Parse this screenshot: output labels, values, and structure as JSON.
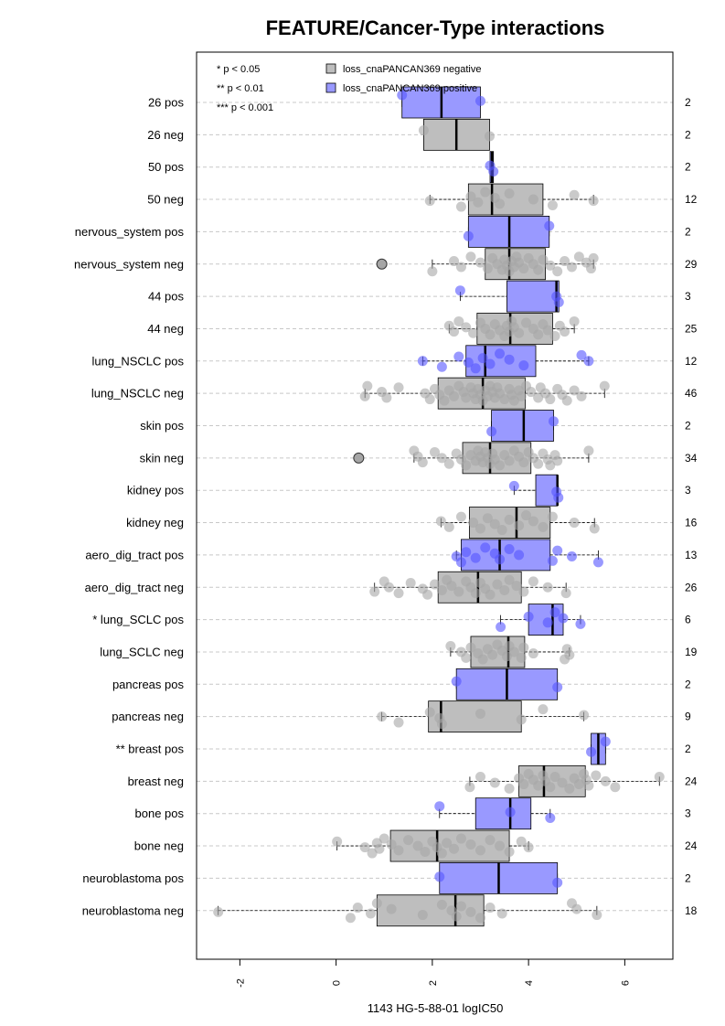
{
  "chart_data": {
    "type": "box",
    "title": "FEATURE/Cancer-Type interactions",
    "xlabel": "1143 HG-5-88-01 logIC50",
    "ylabel": "",
    "xlim": [
      -2.9,
      7.0
    ],
    "xticks": [
      "-2",
      "0",
      "2",
      "4",
      "6"
    ],
    "xtick_values": [
      -2,
      0,
      2,
      4,
      6
    ],
    "grid": "horizontal dashed",
    "significance_legend": [
      "* p < 0.05",
      "** p < 0.01",
      "*** p < 0.001"
    ],
    "legend": [
      {
        "label": "loss_cnaPANCAN369 negative",
        "color": "#bebebe"
      },
      {
        "label": "loss_cnaPANCAN369 positive",
        "color": "#9999ff"
      }
    ],
    "colors": {
      "neg_box": "#bebebe",
      "pos_box": "#9999ff",
      "neg_point": "#a6a6a6",
      "pos_point": "#5555ff"
    },
    "groups": [
      {
        "label": "26 pos",
        "n": "2",
        "pos": true,
        "q1": 1.37,
        "median": 2.19,
        "q3": 3.0,
        "wlo": 1.37,
        "whi": 3.0,
        "outliers": [],
        "points": [
          1.37,
          3.0
        ]
      },
      {
        "label": "26 neg",
        "n": "2",
        "pos": false,
        "q1": 1.82,
        "median": 2.5,
        "q3": 3.19,
        "wlo": 1.82,
        "whi": 3.19,
        "outliers": [],
        "points": [
          1.82,
          3.19
        ]
      },
      {
        "label": "50 pos",
        "n": "2",
        "pos": true,
        "q1": 3.2,
        "median": 3.24,
        "q3": 3.27,
        "wlo": 3.2,
        "whi": 3.27,
        "outliers": [],
        "points": [
          3.2,
          3.27
        ]
      },
      {
        "label": "50 neg",
        "n": "12",
        "pos": false,
        "q1": 2.75,
        "median": 3.24,
        "q3": 4.3,
        "wlo": 1.95,
        "whi": 5.35,
        "outliers": [],
        "points": [
          1.95,
          2.6,
          2.8,
          2.95,
          3.1,
          3.3,
          3.4,
          3.6,
          4.1,
          4.5,
          4.95,
          5.35
        ]
      },
      {
        "label": "nervous_system pos",
        "n": "2",
        "pos": true,
        "q1": 2.75,
        "median": 3.6,
        "q3": 4.43,
        "wlo": 2.75,
        "whi": 4.43,
        "outliers": [],
        "points": [
          2.75,
          4.43
        ]
      },
      {
        "label": "nervous_system neg",
        "n": "29",
        "pos": false,
        "q1": 3.1,
        "median": 3.6,
        "q3": 4.35,
        "wlo": 2.0,
        "whi": 5.35,
        "outliers": [
          0.95
        ],
        "points": [
          2.0,
          2.45,
          2.6,
          2.8,
          3.0,
          3.15,
          3.25,
          3.35,
          3.45,
          3.5,
          3.55,
          3.6,
          3.65,
          3.7,
          3.75,
          3.8,
          3.9,
          4.0,
          4.1,
          4.2,
          4.3,
          4.45,
          4.6,
          4.75,
          4.9,
          5.05,
          5.2,
          5.3,
          5.35
        ]
      },
      {
        "label": "44 pos",
        "n": "3",
        "pos": true,
        "q1": 3.55,
        "median": 4.58,
        "q3": 4.63,
        "wlo": 2.58,
        "whi": 4.63,
        "outliers": [],
        "points": [
          2.58,
          4.58,
          4.63
        ]
      },
      {
        "label": "44 neg",
        "n": "25",
        "pos": false,
        "q1": 2.93,
        "median": 3.62,
        "q3": 4.5,
        "wlo": 2.35,
        "whi": 4.95,
        "outliers": [],
        "points": [
          2.35,
          2.45,
          2.55,
          2.7,
          2.85,
          3.0,
          3.1,
          3.2,
          3.3,
          3.4,
          3.5,
          3.55,
          3.6,
          3.65,
          3.7,
          3.8,
          3.95,
          4.1,
          4.2,
          4.3,
          4.4,
          4.55,
          4.65,
          4.75,
          4.95
        ]
      },
      {
        "label": "lung_NSCLC pos",
        "n": "12",
        "pos": true,
        "q1": 2.7,
        "median": 3.1,
        "q3": 4.15,
        "wlo": 1.8,
        "whi": 5.25,
        "outliers": [],
        "points": [
          1.8,
          2.2,
          2.55,
          2.75,
          2.9,
          3.05,
          3.2,
          3.4,
          3.6,
          3.9,
          5.1,
          5.25
        ]
      },
      {
        "label": "lung_NSCLC neg",
        "n": "46",
        "pos": false,
        "q1": 2.12,
        "median": 3.05,
        "q3": 3.93,
        "wlo": 0.6,
        "whi": 5.58,
        "outliers": [],
        "points": [
          0.6,
          0.65,
          0.95,
          1.05,
          1.3,
          1.85,
          1.95,
          2.05,
          2.15,
          2.25,
          2.35,
          2.45,
          2.55,
          2.65,
          2.7,
          2.8,
          2.85,
          2.9,
          2.95,
          3.0,
          3.05,
          3.1,
          3.15,
          3.2,
          3.25,
          3.3,
          3.35,
          3.4,
          3.5,
          3.6,
          3.65,
          3.7,
          3.8,
          3.85,
          3.95,
          4.05,
          4.2,
          4.25,
          4.35,
          4.45,
          4.6,
          4.7,
          4.8,
          4.95,
          5.1,
          5.58
        ]
      },
      {
        "label": "skin pos",
        "n": "2",
        "pos": true,
        "q1": 3.23,
        "median": 3.9,
        "q3": 4.52,
        "wlo": 3.23,
        "whi": 4.52,
        "outliers": [],
        "points": [
          3.23,
          4.52
        ]
      },
      {
        "label": "skin neg",
        "n": "34",
        "pos": false,
        "q1": 2.63,
        "median": 3.2,
        "q3": 4.05,
        "wlo": 1.62,
        "whi": 5.25,
        "outliers": [
          0.47
        ],
        "points": [
          1.62,
          1.7,
          1.8,
          2.05,
          2.2,
          2.35,
          2.5,
          2.6,
          2.7,
          2.8,
          2.9,
          2.95,
          3.0,
          3.05,
          3.1,
          3.15,
          3.2,
          3.25,
          3.3,
          3.4,
          3.5,
          3.6,
          3.7,
          3.8,
          3.9,
          4.0,
          4.1,
          4.2,
          4.3,
          4.4,
          4.45,
          4.55,
          4.6,
          5.25
        ]
      },
      {
        "label": "kidney pos",
        "n": "3",
        "pos": true,
        "q1": 4.15,
        "median": 4.6,
        "q3": 4.6,
        "wlo": 3.7,
        "whi": 4.62,
        "outliers": [],
        "points": [
          3.7,
          4.58,
          4.62
        ]
      },
      {
        "label": "kidney neg",
        "n": "16",
        "pos": false,
        "q1": 2.77,
        "median": 3.75,
        "q3": 4.45,
        "wlo": 2.18,
        "whi": 5.37,
        "outliers": [],
        "points": [
          2.18,
          2.35,
          2.6,
          2.85,
          3.0,
          3.15,
          3.3,
          3.45,
          3.6,
          3.8,
          3.95,
          4.1,
          4.3,
          4.5,
          4.95,
          5.37
        ]
      },
      {
        "label": "aero_dig_tract pos",
        "n": "13",
        "pos": true,
        "q1": 2.6,
        "median": 3.4,
        "q3": 4.45,
        "wlo": 2.5,
        "whi": 5.45,
        "outliers": [],
        "points": [
          2.5,
          2.6,
          2.7,
          2.9,
          3.1,
          3.3,
          3.4,
          3.6,
          3.8,
          4.5,
          4.6,
          4.9,
          5.45
        ]
      },
      {
        "label": "aero_dig_tract neg",
        "n": "26",
        "pos": false,
        "q1": 2.12,
        "median": 2.95,
        "q3": 3.85,
        "wlo": 0.8,
        "whi": 4.78,
        "outliers": [],
        "points": [
          0.8,
          1.0,
          1.1,
          1.3,
          1.55,
          1.8,
          1.9,
          2.05,
          2.2,
          2.3,
          2.4,
          2.55,
          2.7,
          2.8,
          2.9,
          3.0,
          3.1,
          3.2,
          3.35,
          3.5,
          3.6,
          3.75,
          3.9,
          4.1,
          4.4,
          4.78
        ]
      },
      {
        "label": "* lung_SCLC pos",
        "n": "6",
        "pos": true,
        "q1": 4.0,
        "median": 4.5,
        "q3": 4.72,
        "wlo": 3.42,
        "whi": 5.08,
        "outliers": [],
        "points": [
          3.42,
          4.0,
          4.4,
          4.55,
          4.72,
          5.08
        ]
      },
      {
        "label": "lung_SCLC neg",
        "n": "19",
        "pos": false,
        "q1": 2.8,
        "median": 3.58,
        "q3": 3.92,
        "wlo": 2.38,
        "whi": 4.85,
        "outliers": [],
        "points": [
          2.38,
          2.6,
          2.7,
          2.8,
          2.95,
          3.05,
          3.15,
          3.25,
          3.35,
          3.45,
          3.55,
          3.6,
          3.7,
          3.85,
          3.9,
          4.1,
          4.75,
          4.8,
          4.85
        ]
      },
      {
        "label": "pancreas pos",
        "n": "2",
        "pos": true,
        "q1": 2.5,
        "median": 3.55,
        "q3": 4.6,
        "wlo": 2.5,
        "whi": 4.6,
        "outliers": [],
        "points": [
          2.5,
          4.6
        ]
      },
      {
        "label": "pancreas neg",
        "n": "9",
        "pos": false,
        "q1": 1.92,
        "median": 2.18,
        "q3": 3.85,
        "wlo": 0.95,
        "whi": 5.15,
        "outliers": [],
        "points": [
          0.95,
          1.3,
          1.95,
          2.15,
          2.2,
          3.0,
          3.85,
          4.3,
          5.15
        ]
      },
      {
        "label": "** breast pos",
        "n": "2",
        "pos": true,
        "q1": 5.3,
        "median": 5.45,
        "q3": 5.6,
        "wlo": 5.3,
        "whi": 5.6,
        "outliers": [],
        "points": [
          5.3,
          5.6
        ]
      },
      {
        "label": "breast neg",
        "n": "24",
        "pos": false,
        "q1": 3.8,
        "median": 4.32,
        "q3": 5.18,
        "wlo": 2.78,
        "whi": 6.72,
        "outliers": [],
        "points": [
          2.78,
          3.0,
          3.3,
          3.6,
          3.8,
          3.9,
          4.0,
          4.1,
          4.2,
          4.3,
          4.35,
          4.45,
          4.55,
          4.7,
          4.85,
          4.95,
          5.05,
          5.15,
          5.2,
          5.25,
          5.4,
          5.6,
          5.8,
          6.72
        ]
      },
      {
        "label": "bone pos",
        "n": "3",
        "pos": true,
        "q1": 2.9,
        "median": 3.62,
        "q3": 4.05,
        "wlo": 2.15,
        "whi": 4.45,
        "outliers": [],
        "points": [
          2.15,
          3.62,
          4.45
        ]
      },
      {
        "label": "bone neg",
        "n": "24",
        "pos": false,
        "q1": 1.13,
        "median": 2.1,
        "q3": 3.6,
        "wlo": 0.02,
        "whi": 4.0,
        "outliers": [],
        "points": [
          0.02,
          0.6,
          0.75,
          0.85,
          0.9,
          1.0,
          1.15,
          1.3,
          1.5,
          1.7,
          1.85,
          2.0,
          2.1,
          2.2,
          2.3,
          2.45,
          2.6,
          2.8,
          3.0,
          3.2,
          3.4,
          3.6,
          3.85,
          4.0
        ]
      },
      {
        "label": "neuroblastoma pos",
        "n": "2",
        "pos": true,
        "q1": 2.15,
        "median": 3.38,
        "q3": 4.6,
        "wlo": 2.15,
        "whi": 4.6,
        "outliers": [],
        "points": [
          2.15,
          4.6
        ]
      },
      {
        "label": "neuroblastoma neg",
        "n": "18",
        "pos": false,
        "q1": 0.85,
        "median": 2.48,
        "q3": 3.07,
        "wlo": -2.45,
        "whi": 5.42,
        "outliers": [],
        "points": [
          -2.45,
          0.3,
          0.45,
          0.72,
          0.85,
          1.15,
          1.8,
          2.2,
          2.4,
          2.5,
          2.6,
          2.8,
          3.0,
          3.2,
          3.45,
          4.9,
          5.0,
          5.42
        ]
      }
    ]
  }
}
